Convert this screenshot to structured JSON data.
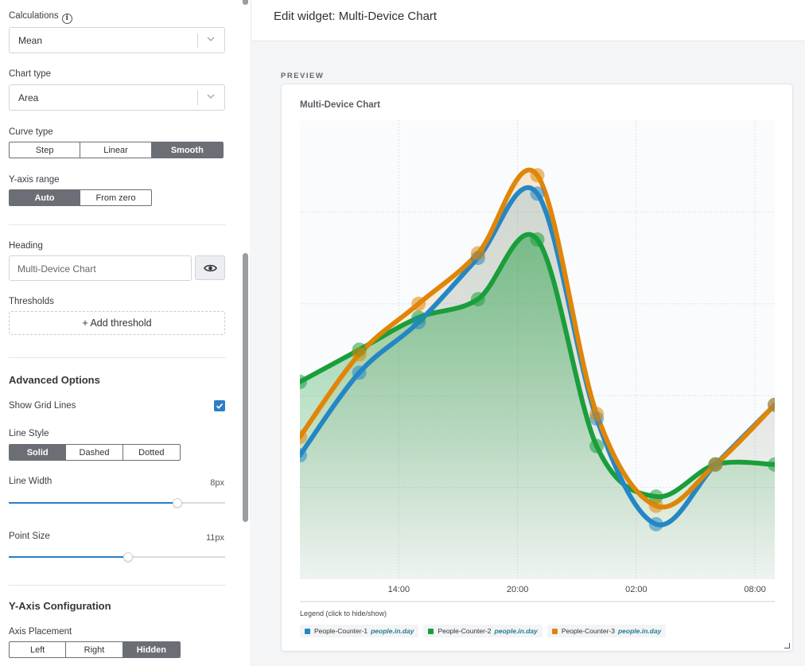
{
  "sidebar": {
    "calculations": {
      "label": "Calculations",
      "value": "Mean"
    },
    "chart_type": {
      "label": "Chart type",
      "value": "Area"
    },
    "curve_type": {
      "label": "Curve type",
      "options": [
        "Step",
        "Linear",
        "Smooth"
      ],
      "selected": "Smooth"
    },
    "y_axis_range": {
      "label": "Y-axis range",
      "options": [
        "Auto",
        "From zero"
      ],
      "selected": "Auto"
    },
    "heading": {
      "label": "Heading",
      "value": "Multi-Device Chart"
    },
    "thresholds": {
      "label": "Thresholds",
      "add_label": "+ Add threshold"
    },
    "advanced": {
      "title": "Advanced Options",
      "show_grid_lines": {
        "label": "Show Grid Lines",
        "checked": true
      },
      "line_style": {
        "label": "Line Style",
        "options": [
          "Solid",
          "Dashed",
          "Dotted"
        ],
        "selected": "Solid"
      },
      "line_width": {
        "label": "Line Width",
        "value": "8px",
        "fraction": 0.78
      },
      "point_size": {
        "label": "Point Size",
        "value": "11px",
        "fraction": 0.55
      }
    },
    "y_axis": {
      "title": "Y-Axis Configuration",
      "placement": {
        "label": "Axis Placement",
        "options": [
          "Left",
          "Right",
          "Hidden"
        ],
        "selected": "Hidden"
      }
    }
  },
  "main": {
    "title": "Edit widget: Multi-Device Chart",
    "preview_label": "PREVIEW",
    "card_title": "Multi-Device Chart"
  },
  "chart_data": {
    "type": "area",
    "title": "Multi-Device Chart",
    "curve": "smooth",
    "grid": true,
    "y_axis_hidden": true,
    "x_ticks": [
      "14:00",
      "20:00",
      "02:00",
      "08:00"
    ],
    "x_hours": [
      9,
      12,
      15,
      18,
      21,
      24,
      27,
      30,
      33
    ],
    "x_range": [
      9,
      33
    ],
    "ylim": [
      0,
      100
    ],
    "legend_title": "Legend (click to hide/show)",
    "legend_placement": "bottom",
    "series": [
      {
        "name": "People-Counter-1",
        "unit": "people.in.day",
        "color": "#2487c5",
        "values": [
          27,
          45,
          56,
          70,
          84,
          35,
          12,
          25,
          38
        ]
      },
      {
        "name": "People-Counter-2",
        "unit": "people.in.day",
        "color": "#1a9e3c",
        "values": [
          43,
          50,
          57,
          61,
          74,
          29,
          18,
          25,
          25
        ]
      },
      {
        "name": "People-Counter-3",
        "unit": "people.in.day",
        "color": "#df8608",
        "values": [
          31,
          49,
          60,
          71,
          88,
          36,
          16,
          25,
          38
        ]
      }
    ]
  }
}
